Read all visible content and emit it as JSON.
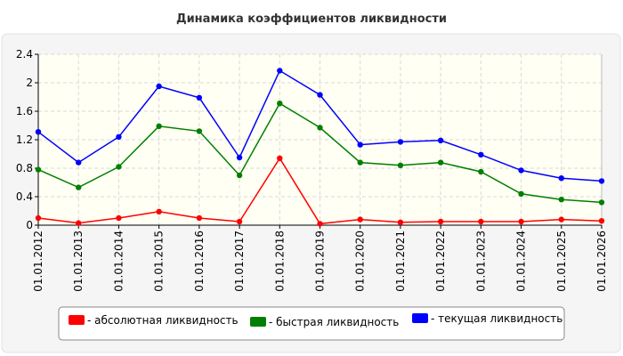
{
  "chart_data": {
    "type": "line",
    "title": "Динамика коэффициентов ликвидности",
    "xlabel": "",
    "ylabel": "",
    "categories": [
      "01.01.2012",
      "01.01.2013",
      "01.01.2014",
      "01.01.2015",
      "01.01.2016",
      "01.01.2017",
      "01.01.2018",
      "01.01.2019",
      "01.01.2020",
      "01.01.2021",
      "01.01.2022",
      "01.01.2023",
      "01.01.2024",
      "01.01.2025",
      "01.01.2026"
    ],
    "ylim": [
      0,
      2.4
    ],
    "yticks": [
      "0",
      "0.4",
      "0.8",
      "1.2",
      "1.6",
      "2",
      "2.4"
    ],
    "grid": true,
    "legend_position": "bottom",
    "series": [
      {
        "name": "- абсолютная ликвидность",
        "color": "#ff0000",
        "values": [
          0.1,
          0.03,
          0.1,
          0.19,
          0.1,
          0.05,
          0.94,
          0.02,
          0.08,
          0.04,
          0.05,
          0.05,
          0.05,
          0.08,
          0.06
        ]
      },
      {
        "name": "- быстрая ликвидность",
        "color": "#007f00",
        "values": [
          0.78,
          0.53,
          0.82,
          1.39,
          1.32,
          0.7,
          1.71,
          1.37,
          0.88,
          0.84,
          0.88,
          0.75,
          0.44,
          0.36,
          0.32
        ]
      },
      {
        "name": "- текущая ликвидность",
        "color": "#0000ff",
        "values": [
          1.31,
          0.88,
          1.24,
          1.95,
          1.79,
          0.95,
          2.17,
          1.83,
          1.13,
          1.17,
          1.19,
          0.99,
          0.77,
          0.66,
          0.62
        ]
      }
    ]
  }
}
